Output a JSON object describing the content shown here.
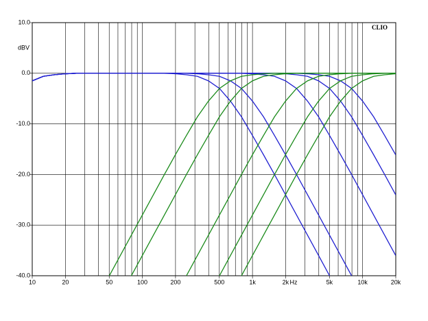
{
  "chart_data": {
    "type": "line",
    "y_unit_label": "dBV",
    "x_unit_label": "Hz",
    "brand": "CLIO",
    "x_scale": "log",
    "grid": true,
    "xlim": [
      10,
      20000
    ],
    "ylim": [
      -40,
      10
    ],
    "xticks": [
      10,
      20,
      50,
      100,
      200,
      500,
      {
        "value": 1000,
        "label": "1k"
      },
      {
        "value": 2000,
        "label": "2k"
      },
      {
        "value": 5000,
        "label": "5k"
      },
      {
        "value": 10000,
        "label": "10k"
      },
      {
        "value": 20000,
        "label": "20k"
      }
    ],
    "xgrid": [
      10,
      20,
      30,
      40,
      50,
      60,
      70,
      80,
      90,
      100,
      200,
      300,
      400,
      500,
      600,
      700,
      800,
      900,
      1000,
      2000,
      3000,
      4000,
      5000,
      6000,
      7000,
      8000,
      9000,
      10000,
      20000
    ],
    "yticks": [
      {
        "value": 10,
        "label": "10.0"
      },
      {
        "value": 0,
        "label": "0.0"
      },
      {
        "value": -10,
        "label": "-10.0"
      },
      {
        "value": -20,
        "label": "-20.0"
      },
      {
        "value": -30,
        "label": "-30.0"
      },
      {
        "value": -40,
        "label": "-40.0"
      }
    ],
    "x": [
      10,
      12.6,
      15.8,
      20,
      25.1,
      31.6,
      39.8,
      50.1,
      63.1,
      79.4,
      100,
      125.9,
      158.5,
      199.5,
      251.2,
      316.2,
      398.1,
      501.2,
      631,
      794.3,
      1000,
      1258.9,
      1584.9,
      1995.3,
      2511.9,
      3162.3,
      3981.1,
      5011.9,
      6309.6,
      7943.3,
      10000,
      12589.3,
      15848.9,
      19952.6
    ],
    "series": [
      {
        "color": "#1f1fd0",
        "values": [
          -1.5,
          -0.6,
          -0.3,
          -0.1,
          0,
          0,
          0,
          0,
          0,
          0,
          0,
          0,
          0,
          -0.1,
          -0.3,
          -0.6,
          -1.5,
          -3,
          -5.5,
          -8.6,
          -12.3,
          -16.1,
          -20,
          -24,
          -28,
          -32,
          -36,
          -40,
          -44,
          null,
          null,
          null,
          null,
          null
        ]
      },
      {
        "color": "#1f1fd0",
        "values": [
          -1.5,
          -0.6,
          -0.3,
          -0.1,
          0,
          0,
          0,
          0,
          0,
          0,
          0,
          0,
          0,
          0,
          0,
          -0.1,
          -0.3,
          -0.6,
          -1.5,
          -3,
          -5.5,
          -8.6,
          -12.3,
          -16.1,
          -20,
          -24,
          -28,
          -32,
          -36,
          -40,
          -44,
          null,
          null,
          null
        ]
      },
      {
        "color": "#1f1fd0",
        "values": [
          -1.5,
          -0.6,
          -0.3,
          -0.1,
          0,
          0,
          0,
          0,
          0,
          0,
          0,
          0,
          0,
          0,
          0,
          0,
          0,
          0,
          0,
          0,
          -0.1,
          -0.3,
          -0.6,
          -1.5,
          -3,
          -5.5,
          -8.6,
          -12.3,
          -16.1,
          -20,
          -24,
          -28,
          -32,
          -36
        ]
      },
      {
        "color": "#1f1fd0",
        "values": [
          -1.5,
          -0.6,
          -0.3,
          -0.1,
          0,
          0,
          0,
          0,
          0,
          0,
          0,
          0,
          0,
          0,
          0,
          0,
          0,
          0,
          0,
          0,
          0,
          0,
          0,
          -0.1,
          -0.3,
          -0.6,
          -1.5,
          -3,
          -5.5,
          -8.6,
          -12.3,
          -16.1,
          -20,
          -24
        ]
      },
      {
        "color": "#1f1fd0",
        "values": [
          -1.5,
          -0.6,
          -0.3,
          -0.1,
          0,
          0,
          0,
          0,
          0,
          0,
          0,
          0,
          0,
          0,
          0,
          0,
          0,
          0,
          0,
          0,
          0,
          0,
          0,
          0,
          0,
          -0.1,
          -0.3,
          -0.6,
          -1.5,
          -3,
          -5.5,
          -8.6,
          -12.3,
          -16.1
        ]
      },
      {
        "color": "#1a8a1a",
        "values": [
          null,
          null,
          null,
          null,
          null,
          null,
          -44,
          -40,
          -36,
          -32,
          -28,
          -24,
          -20,
          -16.1,
          -12.3,
          -8.6,
          -5.5,
          -3,
          -1.5,
          -0.6,
          -0.3,
          -0.1,
          0,
          0,
          0,
          0,
          0,
          0,
          0,
          0,
          0,
          0,
          0,
          0
        ]
      },
      {
        "color": "#1a8a1a",
        "values": [
          null,
          null,
          null,
          null,
          null,
          null,
          null,
          null,
          -44,
          -40,
          -36,
          -32,
          -28,
          -24,
          -20,
          -16.1,
          -12.3,
          -8.6,
          -5.5,
          -3,
          -1.5,
          -0.6,
          -0.3,
          -0.1,
          0,
          0,
          0,
          0,
          0,
          0,
          0,
          0,
          0,
          0
        ]
      },
      {
        "color": "#1a8a1a",
        "values": [
          null,
          null,
          null,
          null,
          null,
          null,
          null,
          null,
          null,
          null,
          null,
          null,
          null,
          -44,
          -40,
          -36,
          -32,
          -28,
          -24,
          -20,
          -16.1,
          -12.3,
          -8.6,
          -5.5,
          -3,
          -1.5,
          -0.6,
          -0.3,
          -0.1,
          0,
          0,
          0,
          0,
          0
        ]
      },
      {
        "color": "#1a8a1a",
        "values": [
          null,
          null,
          null,
          null,
          null,
          null,
          null,
          null,
          null,
          null,
          null,
          null,
          null,
          null,
          null,
          null,
          -44,
          -40,
          -36,
          -32,
          -28,
          -24,
          -20,
          -16.1,
          -12.3,
          -8.6,
          -5.5,
          -3,
          -1.5,
          -0.6,
          -0.3,
          -0.1,
          0,
          0
        ]
      },
      {
        "color": "#1a8a1a",
        "values": [
          null,
          null,
          null,
          null,
          null,
          null,
          null,
          null,
          null,
          null,
          null,
          null,
          null,
          null,
          null,
          null,
          null,
          null,
          -44,
          -40,
          -36,
          -32,
          -28,
          -24,
          -20,
          -16.1,
          -12.3,
          -8.6,
          -5.5,
          -3,
          -1.5,
          -0.6,
          -0.3,
          -0.1
        ]
      }
    ]
  }
}
